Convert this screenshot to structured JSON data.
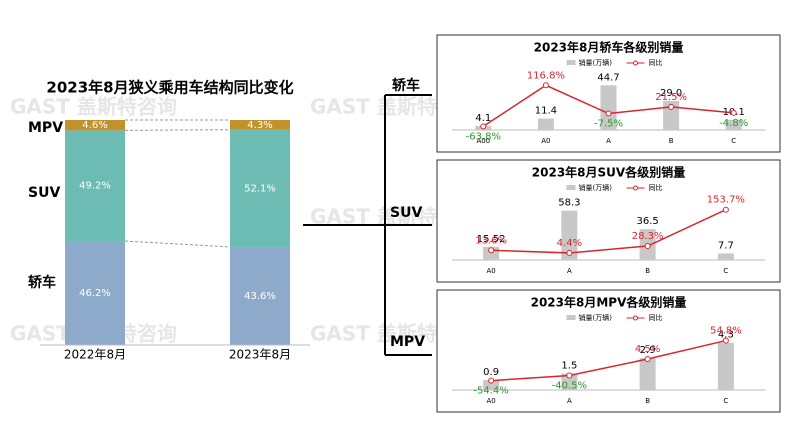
{
  "watermark": "GAST 盖斯特咨询",
  "chart_data": [
    {
      "type": "bar",
      "stacked": true,
      "title": "2023年8月狭义乘用车结构同比变化",
      "categories": [
        "2022年8月",
        "2023年8月"
      ],
      "ylim": [
        0,
        100
      ],
      "series": [
        {
          "name": "轿车",
          "color": "#8eaacb",
          "values": [
            46.2,
            43.6
          ],
          "value_labels": [
            "46.2%",
            "43.6%"
          ]
        },
        {
          "name": "SUV",
          "color": "#6cbcb4",
          "values": [
            49.2,
            52.1
          ],
          "value_labels": [
            "49.2%",
            "52.1%"
          ]
        },
        {
          "name": "MPV",
          "color": "#c1922c",
          "values": [
            4.6,
            4.3
          ],
          "value_labels": [
            "4.6%",
            "4.3%"
          ]
        }
      ]
    },
    {
      "type": "combo",
      "title": "2023年8月轿车各级别销量",
      "categories": [
        "A00",
        "A0",
        "A",
        "B",
        "C"
      ],
      "ylim": [
        0,
        50
      ],
      "y2lim": [
        -80,
        140
      ],
      "series": [
        {
          "name": "销量(万辆)",
          "color": "#c8c8c8",
          "values": [
            4.1,
            11.4,
            44.7,
            29.0,
            10.1
          ],
          "value_labels": [
            "4.1",
            "11.4",
            "44.7",
            "29.0",
            "10.1"
          ]
        },
        {
          "name": "同比",
          "color": "#d9262e",
          "axis": "y2",
          "values": [
            -63.8,
            116.8,
            -7.5,
            21.5,
            -4.8
          ],
          "value_labels": [
            "-63.8%",
            "116.8%",
            "-7.5%",
            "21.5%",
            "-4.8%"
          ]
        }
      ]
    },
    {
      "type": "combo",
      "title": "2023年8月SUV各级别销量",
      "categories": [
        "A0",
        "A",
        "B",
        "C"
      ],
      "ylim": [
        0,
        65
      ],
      "y2lim": [
        -20,
        170
      ],
      "series": [
        {
          "name": "销量(万辆)",
          "color": "#c8c8c8",
          "values": [
            15.52,
            58.3,
            36.5,
            7.7
          ],
          "value_labels": [
            "15.52",
            "58.3",
            "36.5",
            "7.7"
          ]
        },
        {
          "name": "同比",
          "color": "#d9262e",
          "axis": "y2",
          "values": [
            13.6,
            4.4,
            28.3,
            153.7
          ],
          "value_labels": [
            "13.6%",
            "4.4%",
            "28.3%",
            "153.7%"
          ]
        }
      ]
    },
    {
      "type": "combo",
      "title": "2023年8月MPV各级别销量",
      "categories": [
        "A0",
        "A",
        "B",
        "C"
      ],
      "ylim": [
        0,
        5
      ],
      "y2lim": [
        -80,
        70
      ],
      "series": [
        {
          "name": "销量(万辆)",
          "color": "#c8c8c8",
          "values": [
            0.9,
            1.5,
            2.9,
            4.3
          ],
          "value_labels": [
            "0.9",
            "1.5",
            "2.9",
            "4.3"
          ]
        },
        {
          "name": "同比",
          "color": "#d9262e",
          "axis": "y2",
          "values": [
            -54.4,
            -40.5,
            4.5,
            54.8
          ],
          "value_labels": [
            "-54.4%",
            "-40.5%",
            "4.5%",
            "54.8%"
          ]
        }
      ]
    }
  ]
}
